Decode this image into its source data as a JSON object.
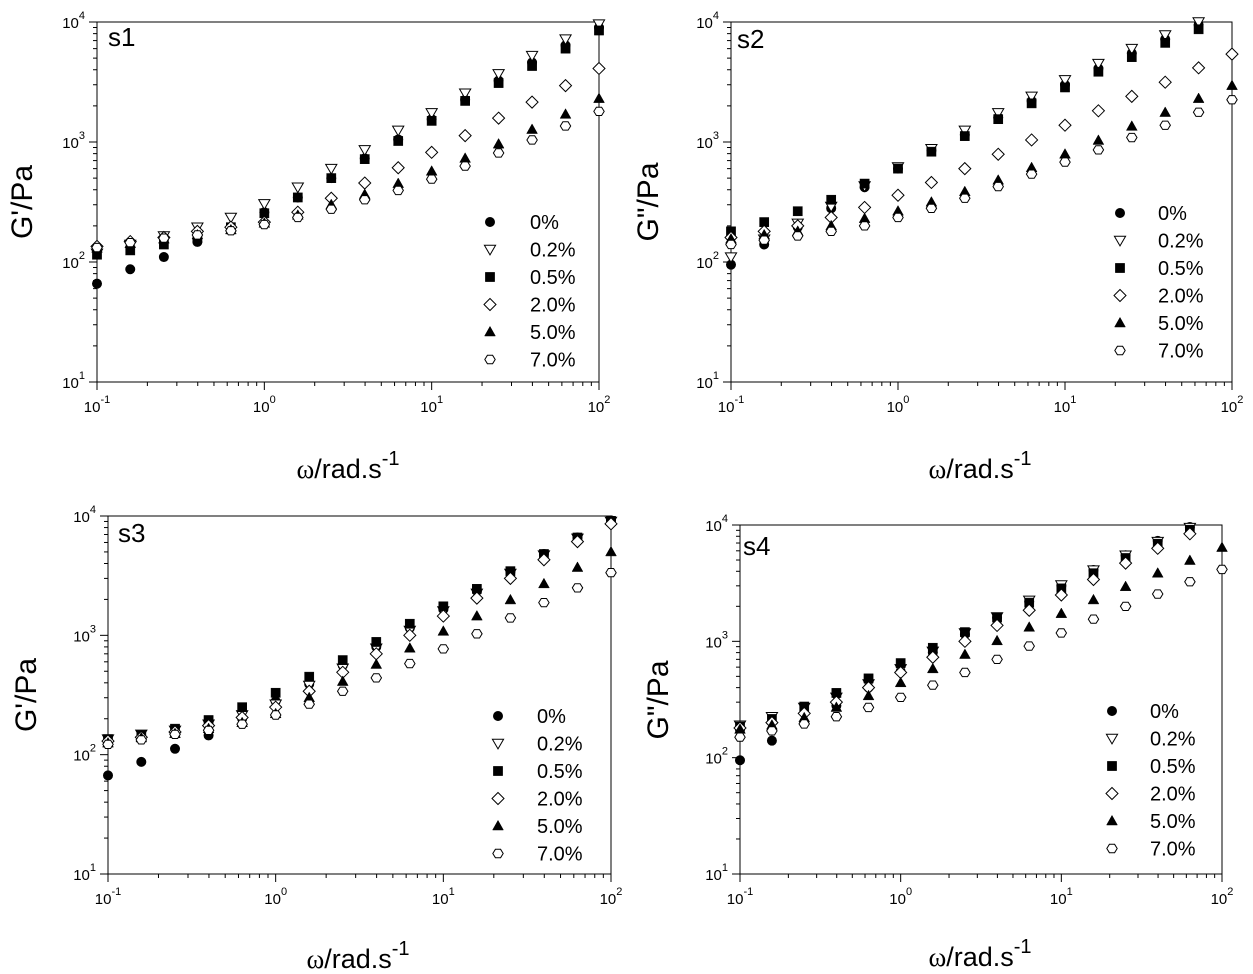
{
  "figure": {
    "x_axis_label_omega": "ω",
    "x_axis_label_rest": "/rad.s",
    "x_axis_label_sup": "-1",
    "tick_base": "10"
  },
  "chart_data": [
    {
      "type": "scatter",
      "title": "s1",
      "ylabel": "G'/Pa",
      "xlabel": "ω/rad.s-1",
      "x_scale": "log",
      "y_scale": "log",
      "xlim": [
        0.1,
        100
      ],
      "ylim": [
        10,
        10000
      ],
      "x_ticks": [
        0.1,
        1,
        10,
        100
      ],
      "x_tick_exponents": [
        "-1",
        "0",
        "1",
        "2"
      ],
      "y_ticks": [
        10,
        100,
        1000,
        10000
      ],
      "y_tick_exponents": [
        "1",
        "2",
        "3",
        "4"
      ],
      "legend_position": "bottom-right",
      "x": [
        0.1,
        0.158,
        0.251,
        0.398,
        0.631,
        1.0,
        1.585,
        2.512,
        3.981,
        6.31,
        10.0,
        15.85,
        25.12,
        39.81,
        63.1,
        100.0
      ],
      "series": [
        {
          "name": "0%",
          "marker": "filled-circle",
          "values": [
            66,
            87,
            110,
            147,
            195,
            260,
            345,
            500,
            730,
            1050,
            1550,
            2250,
            3250,
            4600,
            6400,
            9000
          ]
        },
        {
          "name": "0.2%",
          "marker": "open-triangle-down",
          "values": [
            118,
            140,
            165,
            195,
            235,
            305,
            420,
            600,
            860,
            1250,
            1750,
            2550,
            3700,
            5250,
            7200,
            9600
          ]
        },
        {
          "name": "0.5%",
          "marker": "filled-square",
          "values": [
            115,
            125,
            140,
            158,
            195,
            255,
            345,
            500,
            720,
            1020,
            1500,
            2200,
            3100,
            4300,
            6000,
            8500
          ]
        },
        {
          "name": "2.0%",
          "marker": "open-diamond",
          "values": [
            135,
            148,
            160,
            180,
            195,
            215,
            260,
            340,
            455,
            610,
            820,
            1130,
            1580,
            2150,
            2950,
            4100
          ]
        },
        {
          "name": "5.0%",
          "marker": "filled-triangle-up",
          "values": [
            130,
            142,
            155,
            168,
            185,
            210,
            245,
            300,
            365,
            450,
            570,
            730,
            960,
            1270,
            1700,
            2300
          ]
        },
        {
          "name": "7.0%",
          "marker": "open-hexagon",
          "values": [
            132,
            145,
            158,
            168,
            182,
            205,
            235,
            275,
            330,
            395,
            490,
            630,
            810,
            1040,
            1360,
            1800
          ]
        }
      ]
    },
    {
      "type": "scatter",
      "title": "s2",
      "ylabel": "G\"/Pa",
      "xlabel": "ω/rad.s-1",
      "x_scale": "log",
      "y_scale": "log",
      "xlim": [
        0.1,
        100
      ],
      "ylim": [
        10,
        10000
      ],
      "x_ticks": [
        0.1,
        1,
        10,
        100
      ],
      "x_tick_exponents": [
        "-1",
        "0",
        "1",
        "2"
      ],
      "y_ticks": [
        10,
        100,
        1000,
        10000
      ],
      "y_tick_exponents": [
        "1",
        "2",
        "3",
        "4"
      ],
      "legend_position": "bottom-right",
      "x": [
        0.1,
        0.158,
        0.251,
        0.398,
        0.631,
        1.0,
        1.585,
        2.512,
        3.981,
        6.31,
        10.0,
        15.85,
        25.12,
        39.81,
        63.1,
        100.0
      ],
      "series": [
        {
          "name": "0%",
          "marker": "filled-circle",
          "values": [
            95,
            140,
            195,
            280,
            420,
            600,
            850,
            1150,
            1600,
            2200,
            3000,
            4100,
            5500,
            7200,
            9500,
            null
          ]
        },
        {
          "name": "0.2%",
          "marker": "open-triangle-down",
          "values": [
            110,
            155,
            210,
            290,
            430,
            620,
            880,
            1250,
            1750,
            2400,
            3300,
            4500,
            6000,
            7800,
            10000,
            null
          ]
        },
        {
          "name": "0.5%",
          "marker": "filled-square",
          "values": [
            180,
            215,
            265,
            330,
            450,
            600,
            830,
            1120,
            1550,
            2100,
            2850,
            3850,
            5100,
            6700,
            8700,
            null
          ]
        },
        {
          "name": "2.0%",
          "marker": "open-diamond",
          "values": [
            160,
            180,
            200,
            235,
            285,
            360,
            460,
            600,
            790,
            1040,
            1380,
            1820,
            2400,
            3150,
            4150,
            5400
          ]
        },
        {
          "name": "5.0%",
          "marker": "filled-triangle-up",
          "values": [
            155,
            168,
            180,
            200,
            230,
            265,
            315,
            385,
            480,
            610,
            790,
            1030,
            1350,
            1760,
            2300,
            2950
          ]
        },
        {
          "name": "7.0%",
          "marker": "open-hexagon",
          "values": [
            140,
            152,
            165,
            180,
            200,
            235,
            280,
            340,
            425,
            540,
            680,
            860,
            1090,
            1380,
            1770,
            2250
          ]
        }
      ]
    },
    {
      "type": "scatter",
      "title": "s3",
      "ylabel": "G'/Pa",
      "xlabel": "ω/rad.s-1",
      "x_scale": "log",
      "y_scale": "log",
      "xlim": [
        0.1,
        100
      ],
      "ylim": [
        10,
        10000
      ],
      "x_ticks": [
        0.1,
        1,
        10,
        100
      ],
      "x_tick_exponents": [
        "-1",
        "0",
        "1",
        "2"
      ],
      "y_ticks": [
        10,
        100,
        1000,
        10000
      ],
      "y_tick_exponents": [
        "1",
        "2",
        "3",
        "4"
      ],
      "legend_position": "bottom-right",
      "x": [
        0.1,
        0.158,
        0.251,
        0.398,
        0.631,
        1.0,
        1.585,
        2.512,
        3.981,
        6.31,
        10.0,
        15.85,
        25.12,
        39.81,
        63.1,
        100.0
      ],
      "series": [
        {
          "name": "0%",
          "marker": "filled-circle",
          "values": [
            67,
            87,
            112,
            145,
            200,
            280,
            390,
            560,
            800,
            1150,
            1650,
            2350,
            3400,
            4800,
            6600,
            9200
          ]
        },
        {
          "name": "0.2%",
          "marker": "open-triangle-down",
          "values": [
            135,
            148,
            160,
            180,
            215,
            265,
            380,
            530,
            780,
            1100,
            1600,
            2250,
            3300,
            4700,
            6500,
            9000
          ]
        },
        {
          "name": "0.5%",
          "marker": "filled-square",
          "values": [
            135,
            145,
            165,
            195,
            250,
            330,
            450,
            620,
            880,
            1250,
            1750,
            2450,
            3450,
            4800,
            6600,
            9100
          ]
        },
        {
          "name": "2.0%",
          "marker": "open-diamond",
          "values": [
            130,
            140,
            155,
            175,
            205,
            250,
            340,
            490,
            700,
            1000,
            1450,
            2050,
            3000,
            4300,
            6100,
            8600
          ]
        },
        {
          "name": "5.0%",
          "marker": "filled-triangle-up",
          "values": [
            125,
            138,
            150,
            165,
            185,
            220,
            300,
            410,
            570,
            780,
            1080,
            1450,
            1980,
            2700,
            3700,
            5000
          ]
        },
        {
          "name": "7.0%",
          "marker": "open-hexagon",
          "values": [
            122,
            133,
            148,
            160,
            180,
            215,
            265,
            340,
            440,
            580,
            770,
            1030,
            1400,
            1880,
            2500,
            3350
          ]
        }
      ]
    },
    {
      "type": "scatter",
      "title": "s4",
      "ylabel": "G\"/Pa",
      "xlabel": "ω/rad.s-1",
      "x_scale": "log",
      "y_scale": "log",
      "xlim": [
        0.1,
        100
      ],
      "ylim": [
        10,
        10000
      ],
      "x_ticks": [
        0.1,
        1,
        10,
        100
      ],
      "x_tick_exponents": [
        "-1",
        "0",
        "1",
        "2"
      ],
      "y_ticks": [
        10,
        100,
        1000,
        10000
      ],
      "y_tick_exponents": [
        "1",
        "2",
        "3",
        "4"
      ],
      "legend_position": "bottom-right",
      "x": [
        0.1,
        0.158,
        0.251,
        0.398,
        0.631,
        1.0,
        1.585,
        2.512,
        3.981,
        6.31,
        10.0,
        15.85,
        25.12,
        39.81,
        63.1,
        100.0
      ],
      "series": [
        {
          "name": "0%",
          "marker": "filled-circle",
          "values": [
            95,
            140,
            200,
            280,
            400,
            550,
            800,
            1150,
            1600,
            2200,
            3000,
            4100,
            5500,
            7300,
            9600,
            null
          ]
        },
        {
          "name": "0.2%",
          "marker": "open-triangle-down",
          "values": [
            190,
            225,
            270,
            330,
            430,
            580,
            820,
            1180,
            1620,
            2250,
            3050,
            4100,
            5500,
            7200,
            9500,
            null
          ]
        },
        {
          "name": "0.5%",
          "marker": "filled-square",
          "values": [
            185,
            215,
            275,
            360,
            480,
            650,
            880,
            1200,
            1600,
            2150,
            2850,
            3850,
            5200,
            6900,
            9100,
            null
          ]
        },
        {
          "name": "2.0%",
          "marker": "open-diamond",
          "values": [
            180,
            200,
            240,
            300,
            400,
            540,
            730,
            1000,
            1370,
            1850,
            2500,
            3400,
            4700,
            6300,
            8400,
            null
          ]
        },
        {
          "name": "5.0%",
          "marker": "filled-triangle-up",
          "values": [
            175,
            190,
            220,
            270,
            340,
            440,
            580,
            770,
            1010,
            1320,
            1730,
            2270,
            2950,
            3850,
            4950,
            6400
          ]
        },
        {
          "name": "7.0%",
          "marker": "open-hexagon",
          "values": [
            150,
            170,
            195,
            225,
            270,
            330,
            420,
            540,
            700,
            910,
            1180,
            1550,
            2000,
            2550,
            3250,
            4150
          ]
        }
      ]
    }
  ]
}
